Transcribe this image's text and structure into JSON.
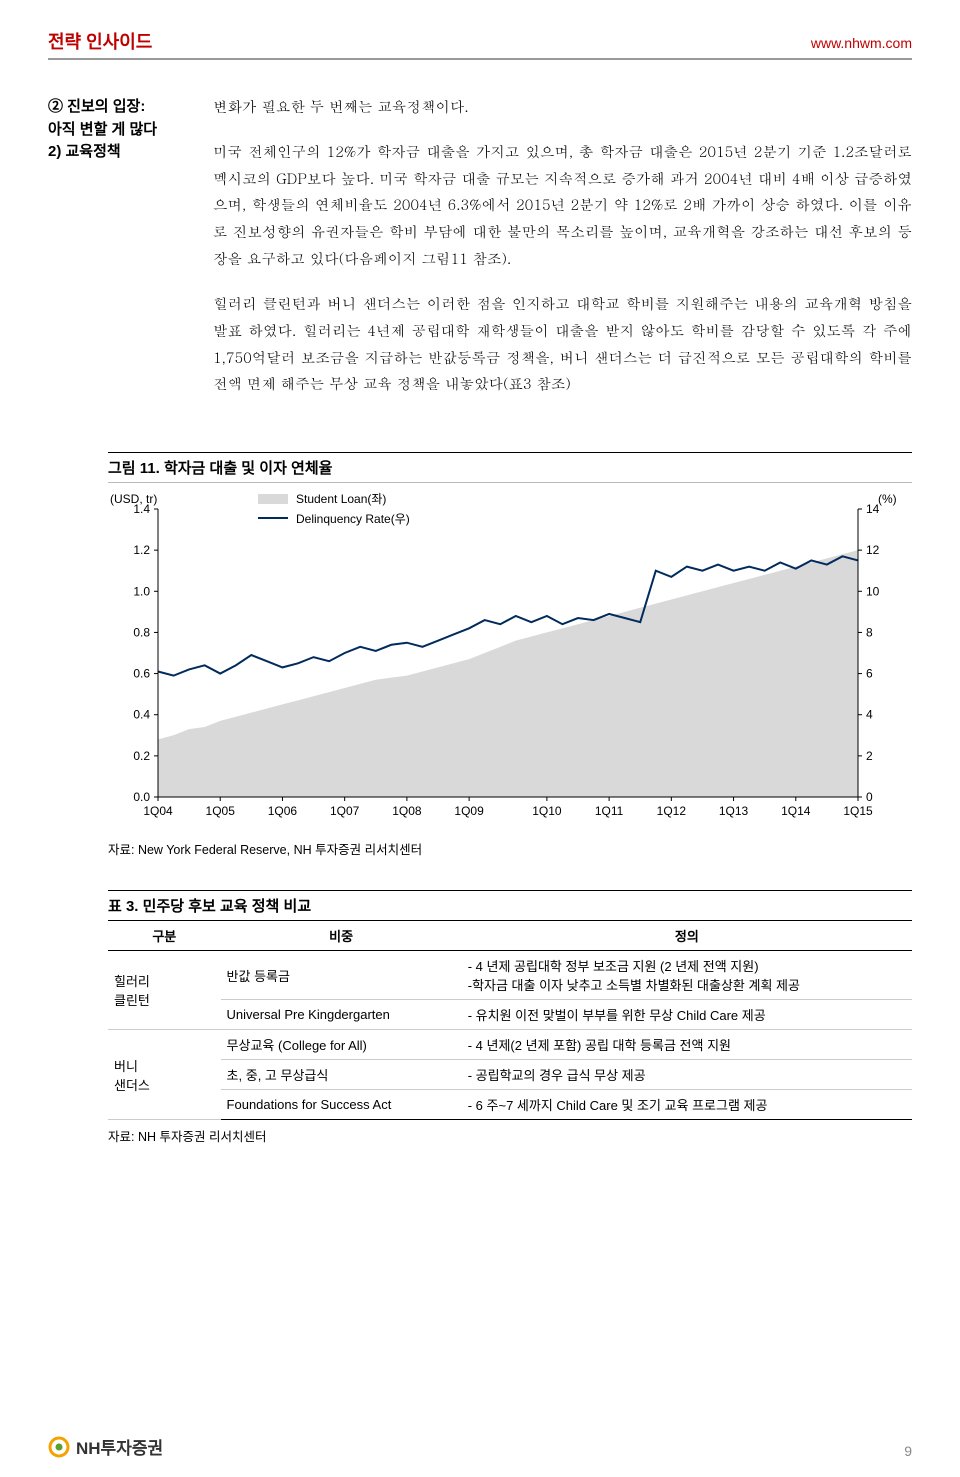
{
  "header": {
    "title": "전략 인사이드",
    "url": "www.nhwm.com"
  },
  "sidebar": {
    "line1": "② 진보의 입장:",
    "line2": "아직 변할 게 많다",
    "line3": "2) 교육정책"
  },
  "body": {
    "p1": "변화가 필요한 두 번째는 교육정책이다.",
    "p2": "미국 전체인구의 12%가 학자금 대출을 가지고 있으며, 총 학자금 대출은 2015년 2분기 기준 1.2조달러로 멕시코의 GDP보다 높다. 미국 학자금 대출 규모는 지속적으로 증가해 과거 2004년 대비 4배 이상 급증하였으며, 학생들의 연체비율도 2004년 6.3%에서 2015년 2분기 약 12%로 2배 가까이 상승 하였다. 이를 이유로 진보성향의 유권자들은 학비 부담에 대한 불만의 목소리를 높이며, 교육개혁을 강조하는 대선 후보의 등장을 요구하고 있다(다음페이지 그림11 참조).",
    "p3": "힐러리 클린턴과 버니 샌더스는 이러한 점을 인지하고 대학교 학비를 지원해주는 내용의 교육개혁 방침을 발표 하였다. 힐러리는 4년제 공립대학 재학생들이 대출을 받지 않아도 학비를 감당할 수 있도록 각 주에 1,750억달러 보조금을 지급하는 반값등록금 정책을, 버니 샌더스는 더 급진적으로 모든 공립대학의 학비를 전액 면제 해주는 무상 교육 정책을 내놓았다(표3 참조)"
  },
  "chart": {
    "title": "그림 11. 학자금 대출 및 이자 연체율",
    "type": "area+line",
    "y_left_unit": "(USD, tr)",
    "y_right_unit": "(%)",
    "y_left_ticks": [
      "1.4",
      "1.2",
      "1.0",
      "0.8",
      "0.6",
      "0.4",
      "0.2",
      "0.0"
    ],
    "y_right_ticks": [
      "14",
      "12",
      "10",
      "8",
      "6",
      "4",
      "2",
      "0"
    ],
    "x_ticks": [
      "1Q04",
      "1Q05",
      "1Q06",
      "1Q07",
      "1Q08",
      "1Q09",
      "1Q10",
      "1Q11",
      "1Q12",
      "1Q13",
      "1Q14",
      "1Q15"
    ],
    "legend": [
      {
        "label": "Student Loan(좌)",
        "swatch": "area"
      },
      {
        "label": "Delinquency Rate(우)",
        "swatch": "line"
      }
    ],
    "area_color": "#d9d9d9",
    "line_color": "#002b5c",
    "axis_color": "#000000",
    "tick_color": "#000000",
    "background_color": "#ffffff",
    "label_fontsize": 12,
    "ylim_left": [
      0.0,
      1.4
    ],
    "ylim_right": [
      0,
      14
    ],
    "loan_values": [
      0.28,
      0.3,
      0.33,
      0.34,
      0.37,
      0.39,
      0.41,
      0.43,
      0.45,
      0.47,
      0.49,
      0.51,
      0.53,
      0.55,
      0.57,
      0.58,
      0.59,
      0.61,
      0.63,
      0.65,
      0.67,
      0.7,
      0.73,
      0.76,
      0.78,
      0.8,
      0.82,
      0.84,
      0.86,
      0.88,
      0.9,
      0.92,
      0.94,
      0.96,
      0.98,
      1.0,
      1.02,
      1.04,
      1.06,
      1.08,
      1.1,
      1.12,
      1.14,
      1.16,
      1.18,
      1.2
    ],
    "rate_values": [
      6.1,
      5.9,
      6.2,
      6.4,
      6.0,
      6.4,
      6.9,
      6.6,
      6.3,
      6.5,
      6.8,
      6.6,
      7.0,
      7.3,
      7.1,
      7.4,
      7.5,
      7.3,
      7.6,
      7.9,
      8.2,
      8.6,
      8.4,
      8.8,
      8.5,
      8.8,
      8.4,
      8.7,
      8.6,
      8.9,
      8.7,
      8.5,
      11.0,
      10.7,
      11.2,
      11.0,
      11.3,
      11.0,
      11.2,
      11.0,
      11.4,
      11.1,
      11.5,
      11.3,
      11.7,
      11.5
    ],
    "source": "자료: New York Federal Reserve, NH 투자증권 리서치센터"
  },
  "table": {
    "title": "표 3. 민주당 후보 교육 정책 비교",
    "columns": [
      "구분",
      "비중",
      "정의"
    ],
    "col_widths": [
      "14%",
      "30%",
      "56%"
    ],
    "rows": [
      {
        "cat": "힐러리\n클린턴",
        "catspan": 2,
        "c1": "반값 등록금",
        "c2": "- 4 년제 공립대학 정부 보조금 지원 (2 년제 전액 지원)\n-학자금 대출 이자 낮추고 소득별 차별화된 대출상환 계획 제공"
      },
      {
        "c1": "Universal Pre Kingdergarten",
        "c2": "- 유치원 이전 맞벌이 부부를 위한 무상 Child Care 제공"
      },
      {
        "cat": "버니\n샌더스",
        "catspan": 3,
        "c1": "무상교육 (College for All)",
        "c2": "- 4 년제(2 년제 포함) 공립 대학 등록금 전액 지원"
      },
      {
        "c1": "초, 중, 고 무상급식",
        "c2": "- 공립학교의 경우 급식 무상 제공"
      },
      {
        "c1": "Foundations for Success Act",
        "c2": "- 6 주~7 세까지 Child Care 및 조기 교육 프로그램 제공"
      }
    ],
    "source": "자료: NH 투자증권 리서치센터"
  },
  "footer": {
    "brand": "NH투자증권",
    "page": "9"
  }
}
